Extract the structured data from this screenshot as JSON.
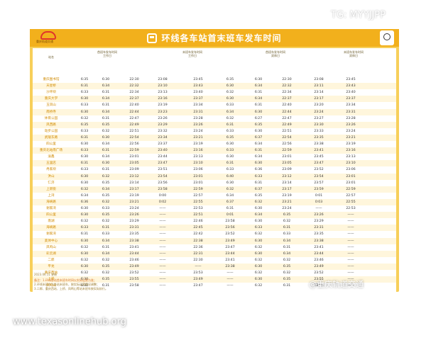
{
  "watermarks": {
    "tg": "TG: MYYJJPP",
    "weibo": "@重庆轨道交通",
    "site": "www.texasonlinehub.org"
  },
  "header": {
    "logo_text": "重庆轨道交通",
    "title": "环线各车站首末班车发车时间"
  },
  "columns": {
    "station": "站名",
    "group_first": {
      "line1": "首班车发车时间",
      "line2": "工作日"
    },
    "group_last_work": {
      "line1": "末班车发车时间",
      "line2": "工作日"
    },
    "group_first_rest": {
      "line1": "首班车发车时间",
      "line2": "双休日"
    },
    "group_last_rest": {
      "line1": "末班车发车时间",
      "line2": "双休日"
    }
  },
  "rows": [
    {
      "s": "重庆图书馆",
      "v": [
        "6:35",
        "6:30",
        "22:30",
        "23:08",
        "23:45",
        "6:35",
        "6:30",
        "22:30",
        "23:08",
        "23:45"
      ]
    },
    {
      "s": "天星桥",
      "v": [
        "6:31",
        "6:34",
        "22:32",
        "23:10",
        "23:43",
        "6:30",
        "6:34",
        "22:32",
        "23:11",
        "23:43"
      ]
    },
    {
      "s": "沙坪坝",
      "v": [
        "6:33",
        "6:31",
        "22:34",
        "23:13",
        "23:40",
        "6:32",
        "6:31",
        "22:34",
        "23:14",
        "23:40"
      ]
    },
    {
      "s": "重庆大学",
      "v": [
        "6:30",
        "6:34",
        "22:37",
        "23:16",
        "23:37",
        "6:30",
        "6:34",
        "22:37",
        "23:17",
        "23:37"
      ]
    },
    {
      "s": "玉凤山",
      "v": [
        "6:33",
        "6:31",
        "22:40",
        "23:19",
        "23:34",
        "6:33",
        "6:31",
        "22:40",
        "23:20",
        "23:34"
      ]
    },
    {
      "s": "南桥寺",
      "v": [
        "6:30",
        "6:34",
        "22:44",
        "23:23",
        "23:31",
        "6:34",
        "6:30",
        "22:44",
        "23:24",
        "23:31"
      ]
    },
    {
      "s": "体育公园",
      "v": [
        "6:32",
        "6:31",
        "22:47",
        "23:26",
        "23:28",
        "6:32",
        "6:27",
        "22:47",
        "23:27",
        "23:28"
      ]
    },
    {
      "s": "凤西路",
      "v": [
        "6:35",
        "6:35",
        "22:49",
        "23:29",
        "23:26",
        "6:31",
        "6:35",
        "22:49",
        "23:30",
        "23:26"
      ]
    },
    {
      "s": "动步公园",
      "v": [
        "6:33",
        "6:32",
        "22:51",
        "23:32",
        "23:24",
        "6:33",
        "6:30",
        "22:51",
        "23:33",
        "23:24"
      ]
    },
    {
      "s": "武陵东路",
      "v": [
        "6:31",
        "6:30",
        "22:54",
        "23:34",
        "23:21",
        "6:35",
        "6:37",
        "22:54",
        "23:35",
        "23:21"
      ]
    },
    {
      "s": "四公里",
      "v": [
        "6:30",
        "6:34",
        "22:56",
        "23:37",
        "23:19",
        "6:30",
        "6:34",
        "22:56",
        "23:38",
        "23:19"
      ]
    },
    {
      "s": "重庆北站南广场",
      "v": [
        "6:33",
        "6:31",
        "22:59",
        "23:40",
        "23:16",
        "6:33",
        "6:31",
        "22:59",
        "23:41",
        "23:16"
      ]
    },
    {
      "s": "渝鑫",
      "v": [
        "6:30",
        "6:34",
        "23:01",
        "23:44",
        "23:13",
        "6:30",
        "6:34",
        "23:01",
        "23:45",
        "23:13"
      ]
    },
    {
      "s": "五里店",
      "v": [
        "6:31",
        "6:30",
        "23:05",
        "23:47",
        "23:10",
        "6:31",
        "6:30",
        "23:05",
        "23:47",
        "23:10"
      ]
    },
    {
      "s": "冉家坝",
      "v": [
        "6:33",
        "6:31",
        "23:09",
        "23:51",
        "23:06",
        "6:33",
        "6:36",
        "23:09",
        "23:52",
        "23:06"
      ]
    },
    {
      "s": "洪山",
      "v": [
        "6:30",
        "6:32",
        "23:12",
        "23:54",
        "23:01",
        "6:40",
        "6:33",
        "23:12",
        "23:54",
        "23:01"
      ]
    },
    {
      "s": "仁济",
      "v": [
        "6:30",
        "6:35",
        "23:14",
        "23:56",
        "23:01",
        "6:30",
        "6:31",
        "23:14",
        "23:57",
        "23:01"
      ]
    },
    {
      "s": "上新街",
      "v": [
        "6:32",
        "6:34",
        "23:17",
        "23:58",
        "22:59",
        "6:32",
        "6:37",
        "23:17",
        "23:59",
        "22:59"
      ]
    },
    {
      "s": "上湾",
      "v": [
        "6:34",
        "6:35",
        "23:19",
        "0:00",
        "22:57",
        "6:34",
        "6:35",
        "23:19",
        "0:01",
        "22:57"
      ]
    },
    {
      "s": "海峡路",
      "v": [
        "6:36",
        "6:32",
        "23:21",
        "0:02",
        "22:55",
        "6:37",
        "6:32",
        "23:21",
        "0:03",
        "22:55"
      ]
    },
    {
      "s": "谢家湾",
      "v": [
        "6:30",
        "6:33",
        "23:24",
        "——",
        "22:53",
        "6:31",
        "6:30",
        "23:24",
        "——",
        "22:53"
      ]
    },
    {
      "s": "四公里",
      "v": [
        "6:30",
        "6:35",
        "23:26",
        "——",
        "22:51",
        "0:01",
        "6:34",
        "6:35",
        "23:26",
        "——"
      ]
    },
    {
      "s": "南湖",
      "v": [
        "6:32",
        "6:32",
        "23:29",
        "——",
        "22:46",
        "23:58",
        "6:30",
        "6:32",
        "23:29",
        "——"
      ]
    },
    {
      "s": "海峡路",
      "v": [
        "6:33",
        "6:31",
        "23:31",
        "——",
        "22:45",
        "23:56",
        "6:33",
        "6:31",
        "23:31",
        "——"
      ]
    },
    {
      "s": "谢家湾",
      "v": [
        "6:31",
        "6:33",
        "23:35",
        "——",
        "22:42",
        "23:52",
        "6:32",
        "6:33",
        "23:35",
        "——"
      ]
    },
    {
      "s": "奥体中心",
      "v": [
        "6:30",
        "6:34",
        "23:38",
        "——",
        "22:38",
        "23:49",
        "6:30",
        "6:34",
        "23:38",
        "——"
      ]
    },
    {
      "s": "凤鸣山",
      "v": [
        "6:32",
        "6:31",
        "23:41",
        "——",
        "22:36",
        "23:47",
        "6:32",
        "6:31",
        "23:41",
        "——"
      ]
    },
    {
      "s": "彩云湖",
      "v": [
        "6:30",
        "6:34",
        "23:44",
        "——",
        "22:31",
        "23:44",
        "6:30",
        "6:34",
        "23:44",
        "——"
      ]
    },
    {
      "s": "二郎",
      "v": [
        "6:32",
        "6:32",
        "23:46",
        "——",
        "22:30",
        "23:41",
        "6:32",
        "6:32",
        "23:46",
        "——"
      ]
    },
    {
      "s": "平龙",
      "v": [
        "6:30",
        "6:35",
        "23:49",
        "——",
        "——",
        "23:38",
        "6:30",
        "6:35",
        "23:49",
        "——"
      ]
    },
    {
      "s": "重庆西站",
      "v": [
        "6:32",
        "6:32",
        "23:52",
        "——",
        "23:53",
        "——",
        "6:32",
        "6:32",
        "23:52",
        "——"
      ]
    },
    {
      "s": "上桥",
      "v": [
        "6:30",
        "6:35",
        "23:55",
        "——",
        "23:49",
        "——",
        "6:30",
        "6:35",
        "23:55",
        "——"
      ]
    },
    {
      "s": "凤鸣山",
      "v": [
        "6:32",
        "6:31",
        "23:58",
        "——",
        "23:47",
        "——",
        "6:32",
        "6:31",
        "23:58",
        "——"
      ]
    }
  ],
  "footer": {
    "date": "2023.06.11 更新",
    "note1": "备注：1.环线各站首末班车时间以实际运营为准；",
    "note2": "2.环线末班车为各站末班车，按实际运营情况调整；",
    "note3": "3.二郎、重庆西站、上桥、凤鸣山等站末班车按实际执行。"
  },
  "colors": {
    "accent": "#f2b01c",
    "sheet": "#f7cf5a",
    "station": "#d08a00"
  }
}
